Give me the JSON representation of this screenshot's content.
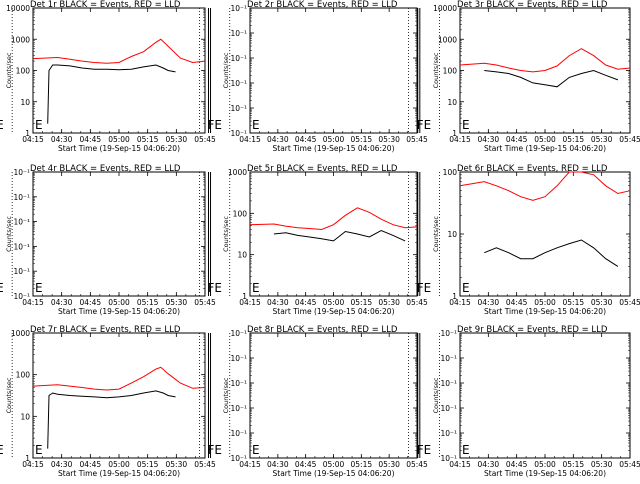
{
  "figure": {
    "background": "#ffffff",
    "axis_color": "#000000",
    "events_color": "#000000",
    "lld_color": "#ff0000"
  },
  "chart_data": [
    {
      "id": "det1",
      "type": "line",
      "title": "Det 1r BLACK = Events, RED = LLD",
      "xlabel": "Start Time (19-Sep-15 04:06:20)",
      "ylabel": "Counts/sec",
      "xlim": [
        14.0,
        47.0
      ],
      "ylim": [
        1,
        10000
      ],
      "yscale": "log",
      "xticks": [
        "04:15",
        "04:30",
        "04:45",
        "05:00",
        "05:15",
        "05:30",
        "05:45"
      ],
      "yticks": [
        "1",
        "10",
        "100",
        "1000",
        "10000"
      ],
      "dotted_lines": [
        4.0,
        10.0
      ],
      "solid_lines": [
        5.8,
        6.2
      ],
      "markers": [
        "E",
        "FE"
      ],
      "series": [
        {
          "color": "#000000",
          "x": [
            0.6,
            0.65,
            0.8,
            1,
            1.5,
            2,
            2.5,
            3,
            3.5,
            4,
            4.5,
            5,
            5.3,
            5.5,
            5.8
          ],
          "y": [
            2,
            100,
            150,
            150,
            140,
            120,
            110,
            110,
            105,
            110,
            130,
            150,
            120,
            100,
            90
          ]
        },
        {
          "color": "#ff0000",
          "x": [
            0,
            1,
            1.5,
            2,
            2.5,
            3,
            3.5,
            4,
            4.5,
            5,
            5.2,
            5.5,
            6,
            6.5,
            7
          ],
          "y": [
            240,
            260,
            230,
            200,
            180,
            170,
            180,
            280,
            400,
            800,
            1000,
            600,
            250,
            180,
            200
          ]
        }
      ]
    },
    {
      "id": "det2",
      "type": "line",
      "title": "Det 2r BLACK = Events, RED = LLD",
      "xlabel": "Start Time (19-Sep-15 04:06:20)",
      "ylabel": "Counts/sec",
      "xlim": [
        14.0,
        47.0
      ],
      "ylim": [
        1,
        10000
      ],
      "yscale": "log",
      "xticks": [
        "04:15",
        "04:30",
        "04:45",
        "05:00",
        "05:15",
        "05:30",
        "05:45"
      ],
      "yticks": [
        "10⁻¹",
        "10⁻¹",
        "10⁻¹",
        "10⁻¹",
        "10⁻¹",
        "10⁻¹"
      ],
      "dotted_lines": [
        4.0,
        10.0
      ],
      "solid_lines": [
        5.8,
        6.2
      ],
      "markers": [
        "E",
        "FE"
      ],
      "series": []
    },
    {
      "id": "det3",
      "type": "line",
      "title": "Det 3r BLACK = Events, RED = LLD",
      "xlabel": "Start Time (19-Sep-15 04:06:20)",
      "ylabel": "Counts/sec",
      "xlim": [
        14.0,
        47.0
      ],
      "ylim": [
        1,
        10000
      ],
      "yscale": "log",
      "xticks": [
        "04:15",
        "04:30",
        "04:45",
        "05:00",
        "05:15",
        "05:30",
        "05:45"
      ],
      "yticks": [
        "1",
        "10",
        "100",
        "1000",
        "10000"
      ],
      "dotted_lines": [
        4.0,
        10.0
      ],
      "solid_lines": [
        5.8,
        6.2
      ],
      "markers": [
        "E",
        "FE"
      ],
      "series": [
        {
          "color": "#000000",
          "x": [
            1,
            1.5,
            2,
            2.5,
            3,
            3.5,
            4,
            4.5,
            5,
            5.5,
            6,
            6.5
          ],
          "y": [
            100,
            90,
            80,
            60,
            40,
            35,
            30,
            60,
            80,
            100,
            70,
            50
          ]
        },
        {
          "color": "#ff0000",
          "x": [
            0,
            1,
            1.5,
            2,
            2.5,
            3,
            3.5,
            4,
            4.5,
            5,
            5.5,
            6,
            6.5,
            7
          ],
          "y": [
            150,
            170,
            150,
            120,
            100,
            90,
            100,
            140,
            300,
            500,
            300,
            150,
            110,
            120
          ]
        }
      ]
    },
    {
      "id": "det4",
      "type": "line",
      "title": "Det 4r BLACK = Events, RED = LLD",
      "xlabel": "Start Time (19-Sep-15 04:06:20)",
      "ylabel": "Counts/sec",
      "xlim": [
        14.0,
        47.0
      ],
      "ylim": [
        1,
        10000
      ],
      "yscale": "log",
      "xticks": [
        "04:15",
        "04:30",
        "04:45",
        "05:00",
        "05:15",
        "05:30",
        "05:45"
      ],
      "yticks": [
        "10⁻¹",
        "10⁻¹",
        "10⁻¹",
        "10⁻¹",
        "10⁻¹",
        "10⁻¹"
      ],
      "dotted_lines": [
        4.0,
        10.0
      ],
      "solid_lines": [
        5.8,
        6.2
      ],
      "markers": [
        "E",
        "FE"
      ],
      "series": []
    },
    {
      "id": "det5",
      "type": "line",
      "title": "Det 5r BLACK = Events, RED = LLD",
      "xlabel": "Start Time (19-Sep-15 04:06:20)",
      "ylabel": "Counts/sec",
      "xlim": [
        14.0,
        47.0
      ],
      "ylim": [
        1,
        10000
      ],
      "yscale": "log",
      "xticks": [
        "04:15",
        "04:30",
        "04:45",
        "05:00",
        "05:15",
        "05:30",
        "05:45"
      ],
      "yticks": [
        "1",
        "10",
        "100",
        "1000"
      ],
      "dotted_lines": [
        4.0,
        10.0
      ],
      "solid_lines": [
        5.8,
        6.2
      ],
      "markers": [
        "E",
        "FE"
      ],
      "series": [
        {
          "color": "#000000",
          "x": [
            1,
            1.5,
            2,
            2.5,
            3,
            3.5,
            4,
            4.5,
            5,
            5.5,
            6,
            6.5
          ],
          "y": [
            100,
            110,
            90,
            80,
            70,
            60,
            120,
            100,
            80,
            130,
            90,
            60
          ]
        },
        {
          "color": "#ff0000",
          "x": [
            0,
            1,
            1.5,
            2,
            2.5,
            3,
            3.5,
            4,
            4.5,
            5,
            5.5,
            6,
            6.5,
            7
          ],
          "y": [
            200,
            210,
            180,
            160,
            150,
            140,
            200,
            400,
            700,
            500,
            300,
            200,
            160,
            170
          ]
        }
      ]
    },
    {
      "id": "det6",
      "type": "line",
      "title": "Det 6r BLACK = Events, RED = LLD",
      "xlabel": "Start Time (19-Sep-15 04:06:20)",
      "ylabel": "Counts/sec",
      "xlim": [
        14.0,
        47.0
      ],
      "ylim": [
        1,
        100
      ],
      "yscale": "log",
      "xticks": [
        "04:15",
        "04:30",
        "04:45",
        "05:00",
        "05:15",
        "05:30",
        "05:45"
      ],
      "yticks": [
        "1",
        "10",
        "100"
      ],
      "dotted_lines": [
        4.0,
        10.0
      ],
      "solid_lines": [
        5.8,
        6.2
      ],
      "markers": [
        "E",
        "FE"
      ],
      "series": [
        {
          "color": "#000000",
          "x": [
            1,
            1.5,
            2,
            2.5,
            3,
            3.5,
            4,
            4.5,
            5,
            5.5,
            6,
            6.5
          ],
          "y": [
            5,
            6,
            5,
            4,
            4,
            5,
            6,
            7,
            8,
            6,
            4,
            3
          ]
        },
        {
          "color": "#ff0000",
          "x": [
            0,
            1,
            1.5,
            2,
            2.5,
            3,
            3.5,
            4,
            4.5,
            5,
            5.5,
            6,
            6.5,
            7
          ],
          "y": [
            60,
            70,
            60,
            50,
            40,
            35,
            40,
            60,
            100,
            120,
            90,
            60,
            45,
            50
          ]
        }
      ]
    },
    {
      "id": "det7",
      "type": "line",
      "title": "Det 7r BLACK = Events, RED = LLD",
      "xlabel": "Start Time (19-Sep-15 04:06:20)",
      "ylabel": "Counts/sec",
      "xlim": [
        14.0,
        47.0
      ],
      "ylim": [
        1,
        10000
      ],
      "yscale": "log",
      "xticks": [
        "04:15",
        "04:30",
        "04:45",
        "05:00",
        "05:15",
        "05:30",
        "05:45"
      ],
      "yticks": [
        "1",
        "10",
        "100",
        "1000"
      ],
      "dotted_lines": [
        4.0,
        10.0
      ],
      "solid_lines": [
        5.8,
        6.2
      ],
      "markers": [
        "E",
        "FE"
      ],
      "series": [
        {
          "color": "#000000",
          "x": [
            0.6,
            0.65,
            0.8,
            1,
            1.5,
            2,
            2.5,
            3,
            3.5,
            4,
            4.5,
            5,
            5.3,
            5.5,
            5.8
          ],
          "y": [
            2,
            100,
            120,
            110,
            100,
            95,
            90,
            85,
            90,
            100,
            120,
            140,
            120,
            100,
            90
          ]
        },
        {
          "color": "#ff0000",
          "x": [
            0,
            1,
            1.5,
            2,
            2.5,
            3,
            3.5,
            4,
            4.5,
            5,
            5.2,
            5.5,
            6,
            6.5,
            7
          ],
          "y": [
            200,
            220,
            200,
            180,
            160,
            150,
            160,
            250,
            400,
            700,
            800,
            500,
            250,
            170,
            180
          ]
        }
      ]
    },
    {
      "id": "det8",
      "type": "line",
      "title": "Det 8r BLACK = Events, RED = LLD",
      "xlabel": "Start Time (19-Sep-15 04:06:20)",
      "ylabel": "Counts/sec",
      "xlim": [
        14.0,
        47.0
      ],
      "ylim": [
        1,
        10000
      ],
      "yscale": "log",
      "xticks": [
        "04:15",
        "04:30",
        "04:45",
        "05:00",
        "05:15",
        "05:30",
        "05:45"
      ],
      "yticks": [
        "10⁻¹",
        "10⁻¹",
        "10⁻¹",
        "10⁻¹",
        "10⁻¹",
        "10⁻¹"
      ],
      "dotted_lines": [
        4.0,
        10.0
      ],
      "solid_lines": [
        5.8,
        6.2
      ],
      "markers": [
        "E",
        "FE"
      ],
      "series": []
    },
    {
      "id": "det9",
      "type": "line",
      "title": "Det 9r BLACK = Events, RED = LLD",
      "xlabel": "Start Time (19-Sep-15 04:06:20)",
      "ylabel": "Counts/sec",
      "xlim": [
        14.0,
        47.0
      ],
      "ylim": [
        1,
        10000
      ],
      "yscale": "log",
      "xticks": [
        "04:15",
        "04:30",
        "04:45",
        "05:00",
        "05:15",
        "05:30",
        "05:45"
      ],
      "yticks": [
        "10⁻¹",
        "10⁻¹",
        "10⁻¹",
        "10⁻¹",
        "10⁻¹",
        "10⁻¹"
      ],
      "dotted_lines": [
        4.0,
        10.0
      ],
      "solid_lines": [
        5.8,
        6.2
      ],
      "markers": [
        "E",
        "FE"
      ],
      "series": []
    }
  ]
}
